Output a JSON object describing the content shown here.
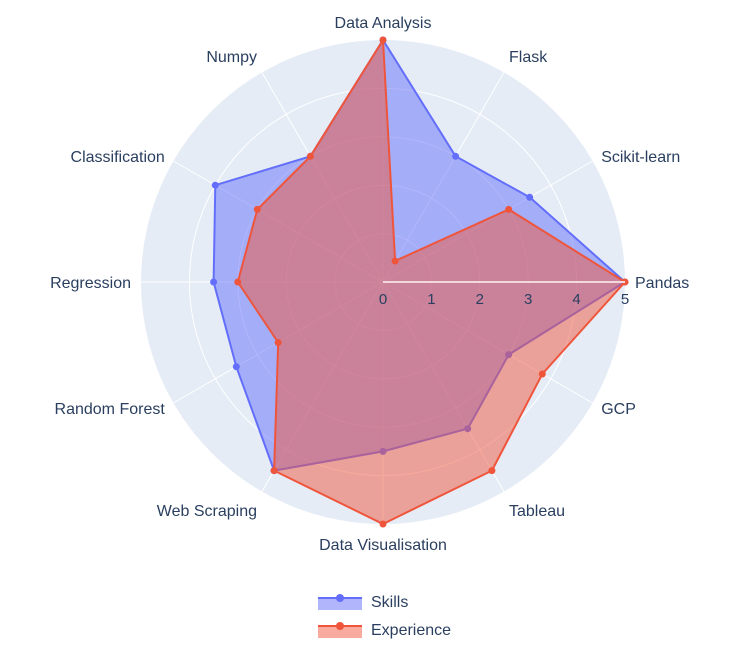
{
  "chart_data": {
    "type": "radar",
    "categories": [
      "Pandas",
      "Scikit-learn",
      "Flask",
      "Data Analysis",
      "Numpy",
      "Classification",
      "Regression",
      "Random Forest",
      "Web Scraping",
      "Data Visualisation",
      "Tableau",
      "GCP"
    ],
    "radial_range": [
      0,
      5
    ],
    "radial_ticks": [
      "0",
      "1",
      "2",
      "3",
      "4",
      "5"
    ],
    "series": [
      {
        "name": "Skills",
        "color": "#636efa",
        "values": [
          5,
          3.5,
          3,
          5,
          3,
          4,
          3.5,
          3.5,
          4.5,
          3.5,
          3.5,
          3
        ]
      },
      {
        "name": "Experience",
        "color": "#ef553b",
        "values": [
          5,
          3,
          0.5,
          5,
          3,
          3,
          3,
          2.5,
          4.5,
          5,
          4.5,
          3.8
        ]
      }
    ],
    "legend_position": "bottom-center",
    "grid": true
  }
}
